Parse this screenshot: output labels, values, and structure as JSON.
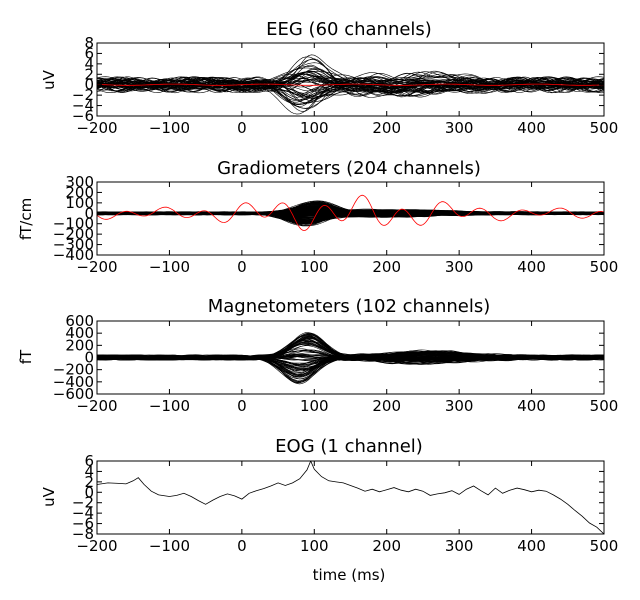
{
  "chart_data": [
    {
      "type": "line",
      "title": "EEG (60 channels)",
      "xlabel": "",
      "ylabel": "uV",
      "xlim": [
        -200,
        500
      ],
      "ylim": [
        -6,
        8
      ],
      "xticks": [
        -200,
        -100,
        0,
        100,
        200,
        300,
        400,
        500
      ],
      "xtick_labels": [
        "−200",
        "−100",
        "0",
        "100",
        "200",
        "300",
        "400",
        "500"
      ],
      "yticks": [
        -6,
        -4,
        -2,
        0,
        2,
        4,
        6,
        8
      ],
      "ytick_labels": [
        "−6",
        "−4",
        "−2",
        "0",
        "2",
        "4",
        "6",
        "8"
      ],
      "n_channels": 60,
      "trace_color": "#000000",
      "highlight_color": "#ff0000",
      "highlight_amplitude": 0.3,
      "baseline_amplitude": 1.2,
      "components": [
        {
          "time": 90,
          "width": 22,
          "amplitude": 5
        },
        {
          "time": 230,
          "width": 60,
          "amplitude": 1.8
        }
      ],
      "grid": false
    },
    {
      "type": "line",
      "title": "Gradiometers (204 channels)",
      "xlabel": "",
      "ylabel": "fT/cm",
      "xlim": [
        -200,
        500
      ],
      "ylim": [
        -400,
        300
      ],
      "xticks": [
        -200,
        -100,
        0,
        100,
        200,
        300,
        400,
        500
      ],
      "xtick_labels": [
        "−200",
        "−100",
        "0",
        "100",
        "200",
        "300",
        "400",
        "500"
      ],
      "yticks": [
        -400,
        -300,
        -200,
        -100,
        0,
        100,
        200,
        300
      ],
      "ytick_labels": [
        "−400",
        "−300",
        "−200",
        "−100",
        "0",
        "100",
        "200",
        "300"
      ],
      "n_channels": 204,
      "trace_color": "#000000",
      "highlight_color": "#ff0000",
      "highlight_amplitude": 150,
      "baseline_amplitude": 12,
      "components": [
        {
          "time": 95,
          "width": 25,
          "amplitude": 110
        },
        {
          "time": 200,
          "width": 70,
          "amplitude": 30
        }
      ],
      "grid": false
    },
    {
      "type": "line",
      "title": "Magnetometers (102 channels)",
      "xlabel": "",
      "ylabel": "fT",
      "xlim": [
        -200,
        500
      ],
      "ylim": [
        -600,
        600
      ],
      "xticks": [
        -200,
        -100,
        0,
        100,
        200,
        300,
        400,
        500
      ],
      "xtick_labels": [
        "−200",
        "−100",
        "0",
        "100",
        "200",
        "300",
        "400",
        "500"
      ],
      "yticks": [
        -600,
        -400,
        -200,
        0,
        200,
        400,
        600
      ],
      "ytick_labels": [
        "−600",
        "−400",
        "−200",
        "0",
        "200",
        "400",
        "600"
      ],
      "n_channels": 102,
      "trace_color": "#000000",
      "highlight_color": "",
      "highlight_amplitude": 0,
      "baseline_amplitude": 35,
      "components": [
        {
          "time": 85,
          "width": 22,
          "amplitude": 420
        },
        {
          "time": 250,
          "width": 60,
          "amplitude": 90
        }
      ],
      "grid": false
    },
    {
      "type": "line",
      "title": "EOG (1 channel)",
      "xlabel": "time (ms)",
      "ylabel": "uV",
      "xlim": [
        -200,
        500
      ],
      "ylim": [
        -8,
        6
      ],
      "xticks": [
        -200,
        -100,
        0,
        100,
        200,
        300,
        400,
        500
      ],
      "xtick_labels": [
        "−200",
        "−100",
        "0",
        "100",
        "200",
        "300",
        "400",
        "500"
      ],
      "yticks": [
        -8,
        -6,
        -4,
        -2,
        0,
        2,
        4,
        6
      ],
      "ytick_labels": [
        "−8",
        "−6",
        "−4",
        "−2",
        "0",
        "2",
        "4",
        "6"
      ],
      "n_channels": 1,
      "trace_color": "#000000",
      "series": [
        {
          "name": "EOG",
          "x": [
            -200,
            -185,
            -170,
            -160,
            -150,
            -143,
            -135,
            -125,
            -115,
            -100,
            -90,
            -80,
            -70,
            -60,
            -50,
            -40,
            -30,
            -20,
            -10,
            0,
            10,
            20,
            30,
            40,
            50,
            60,
            70,
            80,
            90,
            95,
            100,
            110,
            120,
            130,
            140,
            150,
            160,
            170,
            180,
            190,
            200,
            210,
            220,
            230,
            240,
            250,
            260,
            270,
            280,
            290,
            300,
            310,
            320,
            330,
            340,
            350,
            360,
            370,
            380,
            390,
            400,
            410,
            420,
            430,
            440,
            450,
            460,
            470,
            480,
            490,
            500
          ],
          "y": [
            1.5,
            1.8,
            1.7,
            1.6,
            2.2,
            2.8,
            1.5,
            0.2,
            -0.5,
            -0.8,
            -0.6,
            -0.2,
            -0.8,
            -1.6,
            -2.3,
            -1.5,
            -0.8,
            -0.3,
            -0.7,
            -1.3,
            -0.2,
            0.3,
            0.7,
            1.2,
            1.8,
            1.3,
            1.8,
            2.6,
            4.3,
            6.0,
            4.4,
            3.0,
            2.2,
            2.0,
            1.8,
            1.3,
            0.8,
            0.2,
            0.6,
            0.1,
            0.5,
            0.9,
            0.4,
            0.1,
            0.6,
            0.2,
            -0.6,
            -0.3,
            -0.1,
            0.3,
            -0.4,
            0.6,
            1.2,
            0.3,
            -0.5,
            0.8,
            -0.2,
            0.4,
            0.8,
            0.5,
            0.1,
            0.4,
            0.2,
            -0.5,
            -1.3,
            -2.3,
            -3.5,
            -4.6,
            -5.9,
            -6.7,
            -8.0
          ]
        }
      ],
      "grid": false
    }
  ]
}
